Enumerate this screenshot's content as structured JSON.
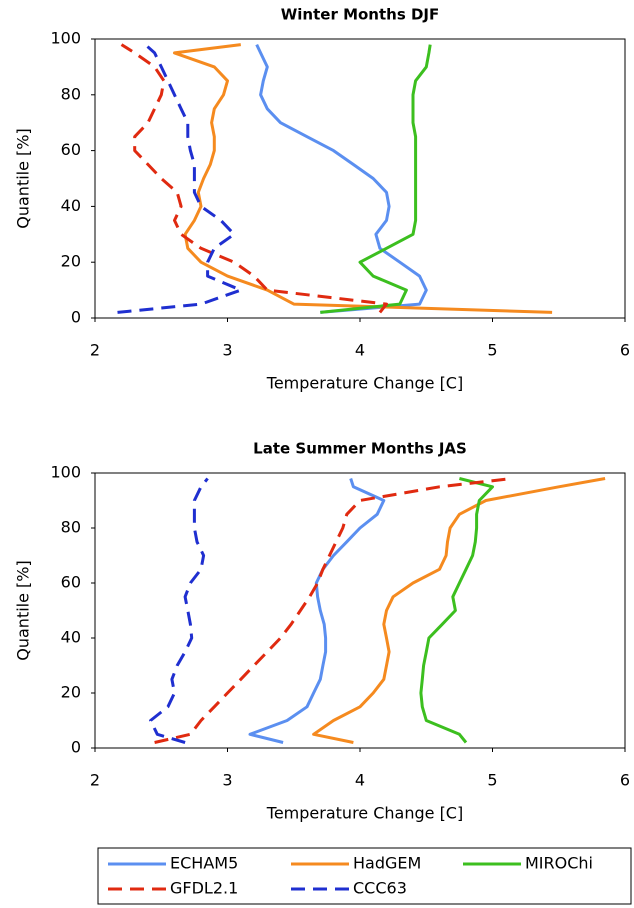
{
  "chart_data": [
    {
      "type": "line",
      "title": "Winter  Months   DJF",
      "xlabel": "Temperature Change [C]",
      "ylabel": "Quantile  [%]",
      "xlim": [
        2,
        6
      ],
      "xticks": [
        2,
        3,
        4,
        5,
        6
      ],
      "ylim": [
        0,
        100
      ],
      "yticks": [
        0,
        20,
        40,
        60,
        80,
        100
      ],
      "series": [
        {
          "name": "ECHAM5",
          "color": "#5b8ff0",
          "dashed": false,
          "x": [
            3.7,
            4.45,
            4.5,
            4.45,
            4.3,
            4.15,
            4.12,
            4.2,
            4.22,
            4.2,
            4.1,
            3.95,
            3.8,
            3.6,
            3.4,
            3.3,
            3.25,
            3.27,
            3.3,
            3.25,
            3.22
          ],
          "values": [
            2,
            5,
            10,
            15,
            20,
            25,
            30,
            35,
            40,
            45,
            50,
            55,
            60,
            65,
            70,
            75,
            80,
            85,
            90,
            95,
            98
          ]
        },
        {
          "name": "HadGEM",
          "color": "#f58a1f",
          "dashed": false,
          "x": [
            5.45,
            3.5,
            3.3,
            3.0,
            2.8,
            2.7,
            2.68,
            2.75,
            2.8,
            2.78,
            2.82,
            2.87,
            2.9,
            2.9,
            2.88,
            2.9,
            2.97,
            3.0,
            2.9,
            2.6,
            3.1
          ],
          "values": [
            2,
            5,
            10,
            15,
            20,
            25,
            30,
            35,
            40,
            45,
            50,
            55,
            60,
            65,
            70,
            75,
            80,
            85,
            90,
            95,
            98
          ]
        },
        {
          "name": "MIROChi",
          "color": "#3cbf1f",
          "dashed": false,
          "x": [
            3.7,
            4.3,
            4.35,
            4.1,
            4.0,
            4.2,
            4.4,
            4.42,
            4.42,
            4.42,
            4.42,
            4.42,
            4.42,
            4.42,
            4.4,
            4.4,
            4.4,
            4.42,
            4.5,
            4.52,
            4.53
          ],
          "values": [
            2,
            5,
            10,
            15,
            20,
            25,
            30,
            35,
            40,
            45,
            50,
            55,
            60,
            65,
            70,
            75,
            80,
            85,
            90,
            95,
            98
          ]
        },
        {
          "name": "GFDL2.1",
          "color": "#e02a10",
          "dashed": true,
          "x": [
            4.15,
            4.2,
            3.3,
            3.2,
            3.05,
            2.8,
            2.65,
            2.6,
            2.65,
            2.62,
            2.5,
            2.4,
            2.3,
            2.3,
            2.4,
            2.45,
            2.5,
            2.52,
            2.45,
            2.3,
            2.2
          ],
          "values": [
            2,
            5,
            10,
            15,
            20,
            25,
            30,
            35,
            40,
            45,
            50,
            55,
            60,
            65,
            70,
            75,
            80,
            85,
            90,
            95,
            98
          ]
        },
        {
          "name": "CCC63",
          "color": "#1f2fd0",
          "dashed": true,
          "x": [
            2.17,
            2.8,
            3.1,
            2.85,
            2.85,
            2.9,
            3.05,
            2.95,
            2.8,
            2.75,
            2.75,
            2.75,
            2.72,
            2.7,
            2.7,
            2.65,
            2.6,
            2.55,
            2.5,
            2.45,
            2.38
          ],
          "values": [
            2,
            5,
            10,
            15,
            20,
            25,
            30,
            35,
            40,
            45,
            50,
            55,
            60,
            65,
            70,
            75,
            80,
            85,
            90,
            95,
            98
          ]
        }
      ]
    },
    {
      "type": "line",
      "title": "Late Summer  Months   JAS",
      "xlabel": "Temperature Change [C]",
      "ylabel": "Quantile  [%]",
      "xlim": [
        2,
        6
      ],
      "xticks": [
        2,
        3,
        4,
        5,
        6
      ],
      "ylim": [
        0,
        100
      ],
      "yticks": [
        0,
        20,
        40,
        60,
        80,
        100
      ],
      "series": [
        {
          "name": "ECHAM5",
          "color": "#5b8ff0",
          "dashed": false,
          "x": [
            3.42,
            3.17,
            3.45,
            3.6,
            3.65,
            3.7,
            3.72,
            3.74,
            3.74,
            3.73,
            3.7,
            3.68,
            3.67,
            3.72,
            3.8,
            3.9,
            4.0,
            4.13,
            4.18,
            3.95,
            3.93
          ],
          "values": [
            2,
            5,
            10,
            15,
            20,
            25,
            30,
            35,
            40,
            45,
            50,
            55,
            60,
            65,
            70,
            75,
            80,
            85,
            90,
            95,
            98
          ]
        },
        {
          "name": "HadGEM",
          "color": "#f58a1f",
          "dashed": false,
          "x": [
            3.95,
            3.65,
            3.8,
            4.0,
            4.1,
            4.18,
            4.2,
            4.22,
            4.2,
            4.18,
            4.2,
            4.25,
            4.4,
            4.6,
            4.65,
            4.66,
            4.68,
            4.75,
            4.95,
            5.5,
            5.85
          ],
          "values": [
            2,
            5,
            10,
            15,
            20,
            25,
            30,
            35,
            40,
            45,
            50,
            55,
            60,
            65,
            70,
            75,
            80,
            85,
            90,
            95,
            98
          ]
        },
        {
          "name": "MIROChi",
          "color": "#3cbf1f",
          "dashed": false,
          "x": [
            4.8,
            4.75,
            4.5,
            4.47,
            4.46,
            4.47,
            4.48,
            4.5,
            4.52,
            4.62,
            4.72,
            4.7,
            4.75,
            4.8,
            4.85,
            4.87,
            4.88,
            4.88,
            4.9,
            5.0,
            4.75
          ],
          "values": [
            2,
            5,
            10,
            15,
            20,
            25,
            30,
            35,
            40,
            45,
            50,
            55,
            60,
            65,
            70,
            75,
            80,
            85,
            90,
            95,
            98
          ]
        },
        {
          "name": "GFDL2.1",
          "color": "#e02a10",
          "dashed": true,
          "x": [
            2.45,
            2.72,
            2.8,
            2.9,
            3.0,
            3.1,
            3.2,
            3.3,
            3.4,
            3.48,
            3.55,
            3.62,
            3.68,
            3.72,
            3.77,
            3.82,
            3.87,
            3.9,
            4.0,
            4.6,
            5.15
          ],
          "values": [
            2,
            5,
            10,
            15,
            20,
            25,
            30,
            35,
            40,
            45,
            50,
            55,
            60,
            65,
            70,
            75,
            80,
            85,
            90,
            95,
            98
          ]
        },
        {
          "name": "CCC63",
          "color": "#1f2fd0",
          "dashed": true,
          "x": [
            2.68,
            2.47,
            2.42,
            2.55,
            2.6,
            2.58,
            2.62,
            2.68,
            2.73,
            2.72,
            2.7,
            2.68,
            2.72,
            2.8,
            2.82,
            2.77,
            2.75,
            2.75,
            2.75,
            2.8,
            2.85
          ],
          "values": [
            2,
            5,
            10,
            15,
            20,
            25,
            30,
            35,
            40,
            45,
            50,
            55,
            60,
            65,
            70,
            75,
            80,
            85,
            90,
            95,
            98
          ]
        }
      ]
    }
  ]
}
